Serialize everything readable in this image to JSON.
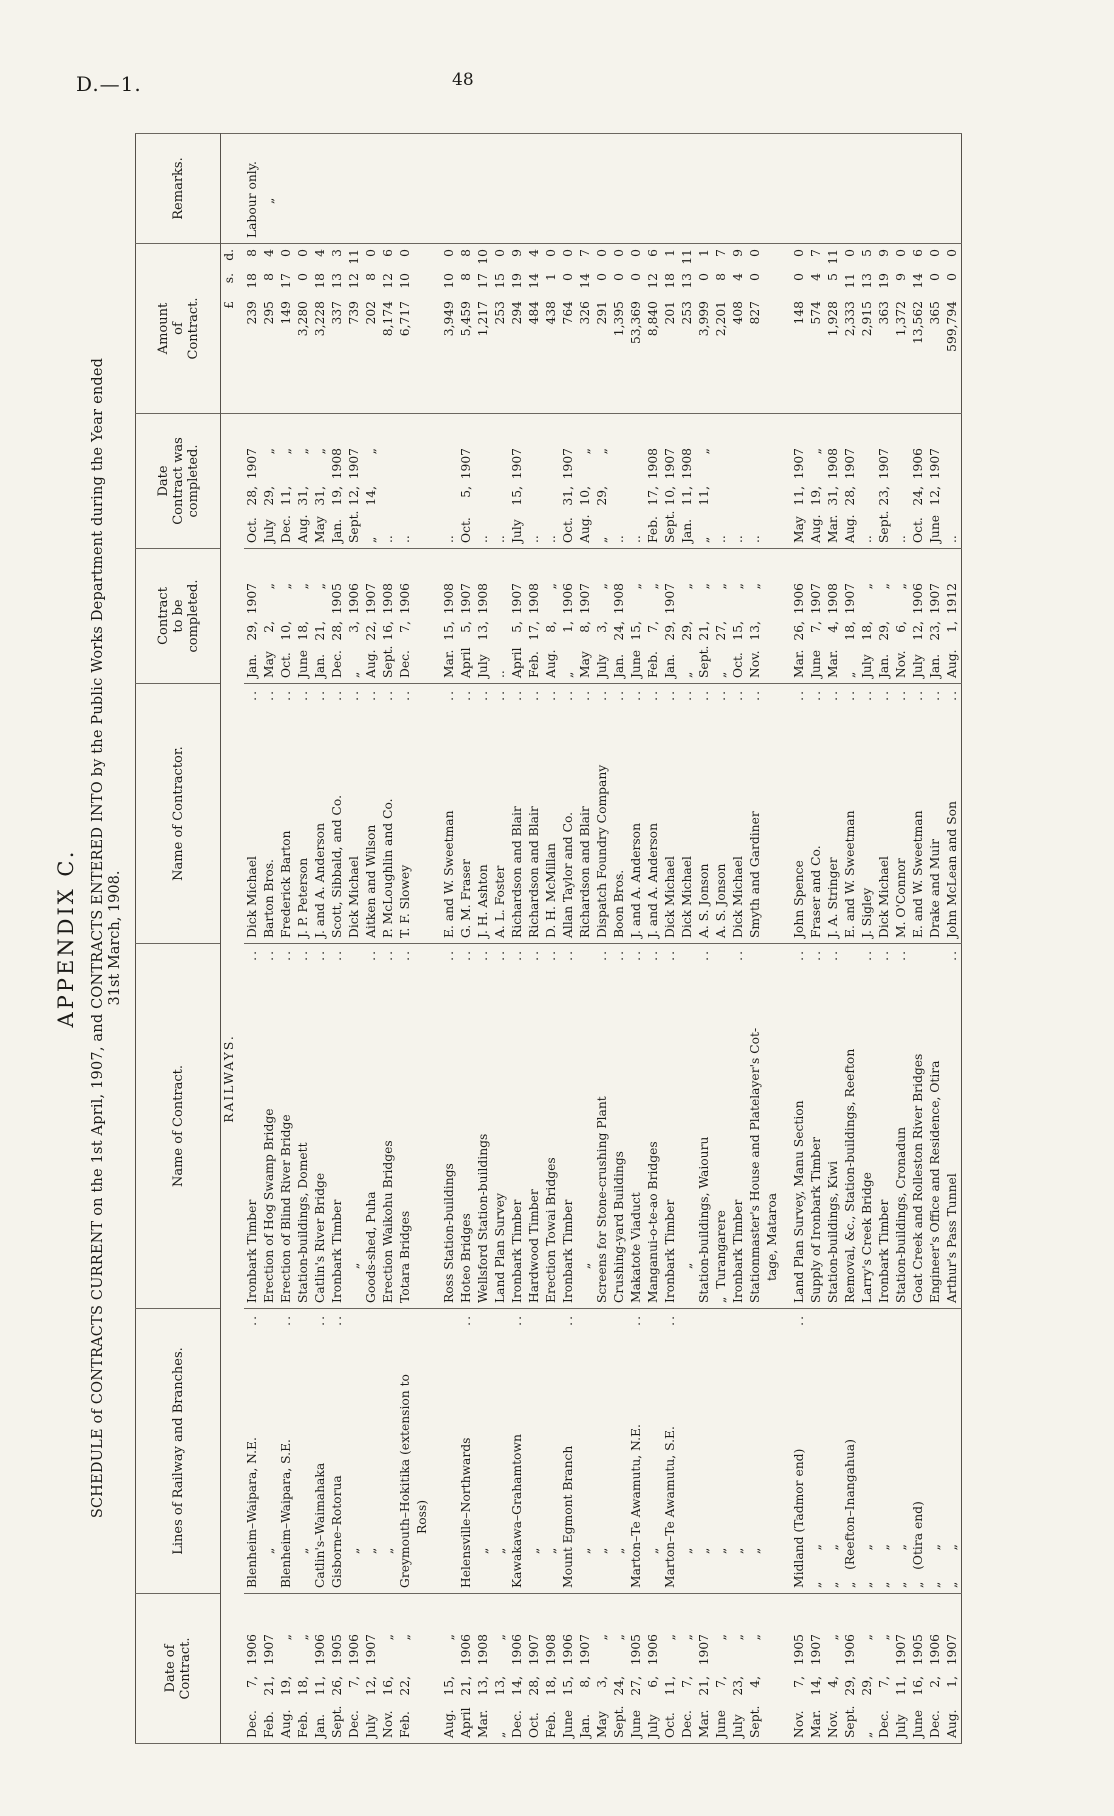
{
  "page": {
    "doc_ref": "D.—1.",
    "page_number": "48"
  },
  "title": {
    "appendix": "APPENDIX C.",
    "schedule_line": "SCHEDULE of CONTRACTS CURRENT on the 1st April, 1907, and CONTRACTS ENTERED INTO by the Public Works Department during the Year ended",
    "schedule_line2": "31st March, 1908."
  },
  "table": {
    "section": "RAILWAYS.",
    "currency_heads": [
      "£",
      "s.",
      "d."
    ],
    "headers": {
      "date": "Date of\nContract.",
      "lines": "Lines of Railway and Branches.",
      "contract": "Name of Contract.",
      "contractor": "Name of Contractor.",
      "tobe": "Contract\nto be\ncompleted.",
      "done": "Date\nContract was\ncompleted.",
      "amount": "Amount\nof\nContract.",
      "remarks": "Remarks."
    },
    "rows": [
      {
        "d": [
          "Dec.",
          "7,",
          "1906"
        ],
        "l": "Blenheim–Waipara, N.E.",
        "c": "Ironbark Timber",
        "n": "Dick Michael",
        "t": [
          "Jan.",
          "29,",
          "1907"
        ],
        "w": [
          "Oct.",
          "28,",
          "1907"
        ],
        "a": [
          "239",
          "18",
          "8"
        ],
        "r": "Labour only."
      },
      {
        "d": [
          "Feb.",
          "21,",
          "1907"
        ],
        "l": "„",
        "c": "Erection of Hog Swamp Bridge",
        "n": "Barton Bros.",
        "t": [
          "May",
          "2,",
          "„"
        ],
        "w": [
          "July",
          "29,",
          "„"
        ],
        "a": [
          "295",
          "8",
          "4"
        ],
        "r": "„"
      },
      {
        "d": [
          "Aug.",
          "19,",
          "„"
        ],
        "l": "Blenheim–Waipara, S.E.",
        "c": "Erection of Blind River Bridge",
        "n": "Frederick Barton",
        "t": [
          "Oct.",
          "10,",
          "„"
        ],
        "w": [
          "Dec.",
          "11,",
          "„"
        ],
        "a": [
          "149",
          "17",
          "0"
        ],
        "r": ""
      },
      {
        "d": [
          "Feb.",
          "18,",
          "„"
        ],
        "l": "„",
        "c": "Station-buildings, Domett",
        "n": "J. P. Peterson",
        "t": [
          "June",
          "18,",
          "„"
        ],
        "w": [
          "Aug.",
          "31,",
          "„"
        ],
        "a": [
          "3,280",
          "0",
          "0"
        ],
        "r": ""
      },
      {
        "d": [
          "Jan.",
          "11,",
          "1906"
        ],
        "l": "Catlin's–Waimahaka",
        "c": "Catlin's River Bridge",
        "n": "J. and A. Anderson",
        "t": [
          "Jan.",
          "21,",
          "„"
        ],
        "w": [
          "May",
          "31,",
          "„"
        ],
        "a": [
          "3,228",
          "18",
          "4"
        ],
        "r": ""
      },
      {
        "d": [
          "Sept.",
          "26,",
          "1905"
        ],
        "l": "Gisborne–Rotorua",
        "c": "Ironbark Timber",
        "n": "Scott, Sibbald, and Co.",
        "t": [
          "Dec.",
          "28,",
          "1905"
        ],
        "w": [
          "Jan.",
          "19,",
          "1908"
        ],
        "a": [
          "337",
          "13",
          "3"
        ],
        "r": ""
      },
      {
        "d": [
          "Dec.",
          "7,",
          "1906"
        ],
        "l": "„",
        "c": "„",
        "n": "Dick Michael",
        "t": [
          "„",
          "3,",
          "1906"
        ],
        "w": [
          "Sept.",
          "12,",
          "1907"
        ],
        "a": [
          "739",
          "12",
          "11"
        ],
        "r": ""
      },
      {
        "d": [
          "July",
          "12,",
          "1907"
        ],
        "l": "„",
        "c": "Goods-shed, Puha",
        "n": "Aitken and Wilson",
        "t": [
          "Aug.",
          "22,",
          "1907"
        ],
        "w": [
          "„",
          "14,",
          "„"
        ],
        "a": [
          "202",
          "8",
          "0"
        ],
        "r": ""
      },
      {
        "d": [
          "Nov.",
          "16,",
          "„"
        ],
        "l": "„",
        "c": "Erection Waikohu Bridges",
        "n": "P. McLoughlin and Co.",
        "t": [
          "Sept.",
          "16,",
          "1908"
        ],
        "w": [
          ".."
        ],
        "a": [
          "8,174",
          "12",
          "6"
        ],
        "r": ""
      },
      {
        "d": [
          "Feb.",
          "22,",
          "„"
        ],
        "l": "Greymouth–Hokitika (extension to",
        "l2": "Ross)",
        "c": "Totara Bridges",
        "n": "T. F. Slowey",
        "t": [
          "Dec.",
          "7,",
          "1906"
        ],
        "w": [
          ".."
        ],
        "a": [
          "6,717",
          "10",
          "0"
        ],
        "r": ""
      },
      {
        "gap": true
      },
      {
        "d": [
          "Aug.",
          "15,",
          "„"
        ],
        "l": "",
        "c": "Ross Station-buildings",
        "n": "E. and W. Sweetman",
        "t": [
          "Mar.",
          "15,",
          "1908"
        ],
        "w": [
          ".."
        ],
        "a": [
          "3,949",
          "10",
          "0"
        ],
        "r": ""
      },
      {
        "d": [
          "April",
          "21,",
          "1906"
        ],
        "l": "Helensville–Northwards",
        "c": "Hoteo Bridges",
        "n": "G. M. Fraser",
        "t": [
          "April",
          "5,",
          "1907"
        ],
        "w": [
          "Oct.",
          "5,",
          "1907"
        ],
        "a": [
          "5,459",
          "8",
          "8"
        ],
        "r": ""
      },
      {
        "d": [
          "Mar.",
          "13,",
          "1908"
        ],
        "l": "„",
        "c": "Wellsford Station-buildings",
        "n": "J. H. Ashton",
        "t": [
          "July",
          "13,",
          "1908"
        ],
        "w": [
          ".."
        ],
        "a": [
          "1,217",
          "17",
          "10"
        ],
        "r": ""
      },
      {
        "d": [
          "„",
          "13,",
          "„"
        ],
        "l": "„",
        "c": "Land Plan Survey",
        "n": "A. L. Foster",
        "t": [
          ".."
        ],
        "w": [
          ".."
        ],
        "a": [
          "253",
          "15",
          "0"
        ],
        "r": ""
      },
      {
        "d": [
          "Dec.",
          "14,",
          "1906"
        ],
        "l": "Kawakawa–Grahamtown",
        "c": "Ironbark Timber",
        "n": "Richardson and Blair",
        "t": [
          "April",
          "5,",
          "1907"
        ],
        "w": [
          "July",
          "15,",
          "1907"
        ],
        "a": [
          "294",
          "19",
          "9"
        ],
        "r": ""
      },
      {
        "d": [
          "Oct.",
          "28,",
          "1907"
        ],
        "l": "„",
        "c": "Hardwood Timber",
        "n": "Richardson and Blair",
        "t": [
          "Feb.",
          "17,",
          "1908"
        ],
        "w": [
          ".."
        ],
        "a": [
          "484",
          "14",
          "4"
        ],
        "r": ""
      },
      {
        "d": [
          "Feb.",
          "18,",
          "1908"
        ],
        "l": "„",
        "c": "Erection Towai Bridges",
        "n": "D. H. McMillan",
        "t": [
          "Aug.",
          "8,",
          "„"
        ],
        "w": [
          ".."
        ],
        "a": [
          "438",
          "1",
          "0"
        ],
        "r": ""
      },
      {
        "d": [
          "June",
          "15,",
          "1906"
        ],
        "l": "Mount Egmont Branch",
        "c": "Ironbark Timber",
        "n": "Allan Taylor and Co.",
        "t": [
          "„",
          "1,",
          "1906"
        ],
        "w": [
          "Oct.",
          "31,",
          "1907"
        ],
        "a": [
          "764",
          "0",
          "0"
        ],
        "r": ""
      },
      {
        "d": [
          "Jan.",
          "8,",
          "1907"
        ],
        "l": "„",
        "c": "„",
        "n": "Richardson and Blair",
        "t": [
          "May",
          "8,",
          "1907"
        ],
        "w": [
          "Aug.",
          "10,",
          "„"
        ],
        "a": [
          "326",
          "14",
          "7"
        ],
        "r": ""
      },
      {
        "d": [
          "May",
          "3,",
          "„"
        ],
        "l": "„",
        "c": "Screens for Stone-crushing Plant",
        "n": "Dispatch Foundry Company",
        "t": [
          "July",
          "3,",
          "„"
        ],
        "w": [
          "„",
          "29,",
          "„"
        ],
        "a": [
          "291",
          "0",
          "0"
        ],
        "r": ""
      },
      {
        "d": [
          "Sept.",
          "24,",
          "„"
        ],
        "l": "„",
        "c": "Crushing-yard Buildings",
        "n": "Boon Bros.",
        "t": [
          "Jan.",
          "24,",
          "1908"
        ],
        "w": [
          ".."
        ],
        "a": [
          "1,395",
          "0",
          "0"
        ],
        "r": ""
      },
      {
        "d": [
          "June",
          "27,",
          "1905"
        ],
        "l": "Marton–Te Awamutu, N.E.",
        "c": "Makatote Viaduct",
        "n": "J. and A. Anderson",
        "t": [
          "June",
          "15,",
          "„"
        ],
        "w": [
          ".."
        ],
        "a": [
          "53,369",
          "0",
          "0"
        ],
        "r": ""
      },
      {
        "d": [
          "July",
          "6,",
          "1906"
        ],
        "l": "„",
        "c": "Manganui-o-te-ao Bridges",
        "n": "J. and A. Anderson",
        "t": [
          "Feb.",
          "7,",
          "„"
        ],
        "w": [
          "Feb.",
          "17,",
          "1908"
        ],
        "a": [
          "8,840",
          "12",
          "6"
        ],
        "r": ""
      },
      {
        "d": [
          "Oct.",
          "11,",
          "„"
        ],
        "l": "Marton–Te Awamutu, S.E.",
        "c": "Ironbark Timber",
        "n": "Dick Michael",
        "t": [
          "Jan.",
          "29,",
          "1907"
        ],
        "w": [
          "Sept.",
          "10,",
          "1907"
        ],
        "a": [
          "201",
          "18",
          "1"
        ],
        "r": ""
      },
      {
        "d": [
          "Dec.",
          "7,",
          "„"
        ],
        "l": "„",
        "c": "„",
        "n": "Dick Michael",
        "t": [
          "„",
          "29,",
          "„"
        ],
        "w": [
          "Jan.",
          "11,",
          "1908"
        ],
        "a": [
          "253",
          "13",
          "11"
        ],
        "r": ""
      },
      {
        "d": [
          "Mar.",
          "21,",
          "1907"
        ],
        "l": "„",
        "c": "Station-buildings, Waiouru",
        "n": "A. S. Jonson",
        "t": [
          "Sept.",
          "21,",
          "„"
        ],
        "w": [
          "„",
          "11,",
          "„"
        ],
        "a": [
          "3,999",
          "0",
          "1"
        ],
        "r": ""
      },
      {
        "d": [
          "June",
          "7,",
          "„"
        ],
        "l": "„",
        "c": "„  Turangarere",
        "n": "A. S. Jonson",
        "t": [
          "„",
          "27,",
          "„"
        ],
        "w": [
          ".."
        ],
        "a": [
          "2,201",
          "8",
          "7"
        ],
        "r": ""
      },
      {
        "d": [
          "July",
          "23,",
          "„"
        ],
        "l": "„",
        "c": "Ironbark Timber",
        "n": "Dick Michael",
        "t": [
          "Oct.",
          "15,",
          "„"
        ],
        "w": [
          ".."
        ],
        "a": [
          "408",
          "4",
          "9"
        ],
        "r": ""
      },
      {
        "d": [
          "Sept.",
          "4,",
          "„"
        ],
        "l": "„",
        "c": "Stationmaster's House and Platelayer's Cot-",
        "c2": "tage, Mataroa",
        "n": "Smyth and Gardiner",
        "t": [
          "Nov.",
          "13,",
          "„"
        ],
        "w": [
          ".."
        ],
        "a": [
          "827",
          "0",
          "0"
        ],
        "r": ""
      },
      {
        "gap": true
      },
      {
        "d": [
          "Nov.",
          "7,",
          "1905"
        ],
        "l": "Midland (Tadmor end)",
        "c": "Land Plan Survey, Manu Section",
        "n": "John Spence",
        "t": [
          "Mar.",
          "26,",
          "1906"
        ],
        "w": [
          "May",
          "11,",
          "1907"
        ],
        "a": [
          "148",
          "0",
          "0"
        ],
        "r": ""
      },
      {
        "d": [
          "Mar.",
          "14,",
          "1907"
        ],
        "l": "„        „",
        "c": "Supply of Ironbark Timber",
        "n": "Fraser and Co.",
        "t": [
          "June",
          "7,",
          "1907"
        ],
        "w": [
          "Aug.",
          "19,",
          "„"
        ],
        "a": [
          "574",
          "4",
          "7"
        ],
        "r": ""
      },
      {
        "d": [
          "Nov.",
          "4,",
          "„"
        ],
        "l": "„        „",
        "c": "Station-buildings, Kiwi",
        "n": "J. A. Stringer",
        "t": [
          "Mar.",
          "4,",
          "1908"
        ],
        "w": [
          "Mar.",
          "31,",
          "1908"
        ],
        "a": [
          "1,928",
          "5",
          "11"
        ],
        "r": ""
      },
      {
        "d": [
          "Sept.",
          "29,",
          "1906"
        ],
        "l": "„   (Reefton–Inangahua)",
        "c": "Removal, &c., Station-buildings, Reefton",
        "n": "E. and W. Sweetman",
        "t": [
          "„",
          "18,",
          "1907"
        ],
        "w": [
          "Aug.",
          "28,",
          "1907"
        ],
        "a": [
          "2,333",
          "11",
          "0"
        ],
        "r": ""
      },
      {
        "d": [
          "„",
          "29,",
          "„"
        ],
        "l": "„        „",
        "c": "Larry's Creek Bridge",
        "n": "J. Sigley",
        "t": [
          "July",
          "18,",
          "„"
        ],
        "w": [
          ".."
        ],
        "a": [
          "2,915",
          "13",
          "5"
        ],
        "r": ""
      },
      {
        "d": [
          "Dec.",
          "7,",
          "„"
        ],
        "l": "„        „",
        "c": "Ironbark Timber",
        "n": "Dick Michael",
        "t": [
          "Jan.",
          "29,",
          "„"
        ],
        "w": [
          "Sept.",
          "23,",
          "1907"
        ],
        "a": [
          "363",
          "19",
          "9"
        ],
        "r": ""
      },
      {
        "d": [
          "July",
          "11,",
          "1907"
        ],
        "l": "„        „",
        "c": "Station-buildings, Cronadun",
        "n": "M. O'Connor",
        "t": [
          "Nov.",
          "6,",
          "„"
        ],
        "w": [
          ".."
        ],
        "a": [
          "1,372",
          "9",
          "0"
        ],
        "r": ""
      },
      {
        "d": [
          "June",
          "16,",
          "1905"
        ],
        "l": "„   (Otira end)",
        "c": "Goat Creek and Rolleston River Bridges",
        "n": "E. and W. Sweetman",
        "t": [
          "July",
          "12,",
          "1906"
        ],
        "w": [
          "Oct.",
          "24,",
          "1906"
        ],
        "a": [
          "13,562",
          "14",
          "6"
        ],
        "r": ""
      },
      {
        "d": [
          "Dec.",
          "2,",
          "1906"
        ],
        "l": "„        „",
        "c": "Engineer's Office and Residence, Otira",
        "n": "Drake and Muir",
        "t": [
          "Jan.",
          "23,",
          "1907"
        ],
        "w": [
          "June",
          "12,",
          "1907"
        ],
        "a": [
          "365",
          "0",
          "0"
        ],
        "r": ""
      },
      {
        "d": [
          "Aug.",
          "1,",
          "1907"
        ],
        "l": "„        „",
        "c": "Arthur's Pass Tunnel",
        "n": "John McLean and Son",
        "t": [
          "Aug.",
          "1,",
          "1912"
        ],
        "w": [
          ".."
        ],
        "a": [
          "599,794",
          "0",
          "0"
        ],
        "r": ""
      }
    ]
  }
}
